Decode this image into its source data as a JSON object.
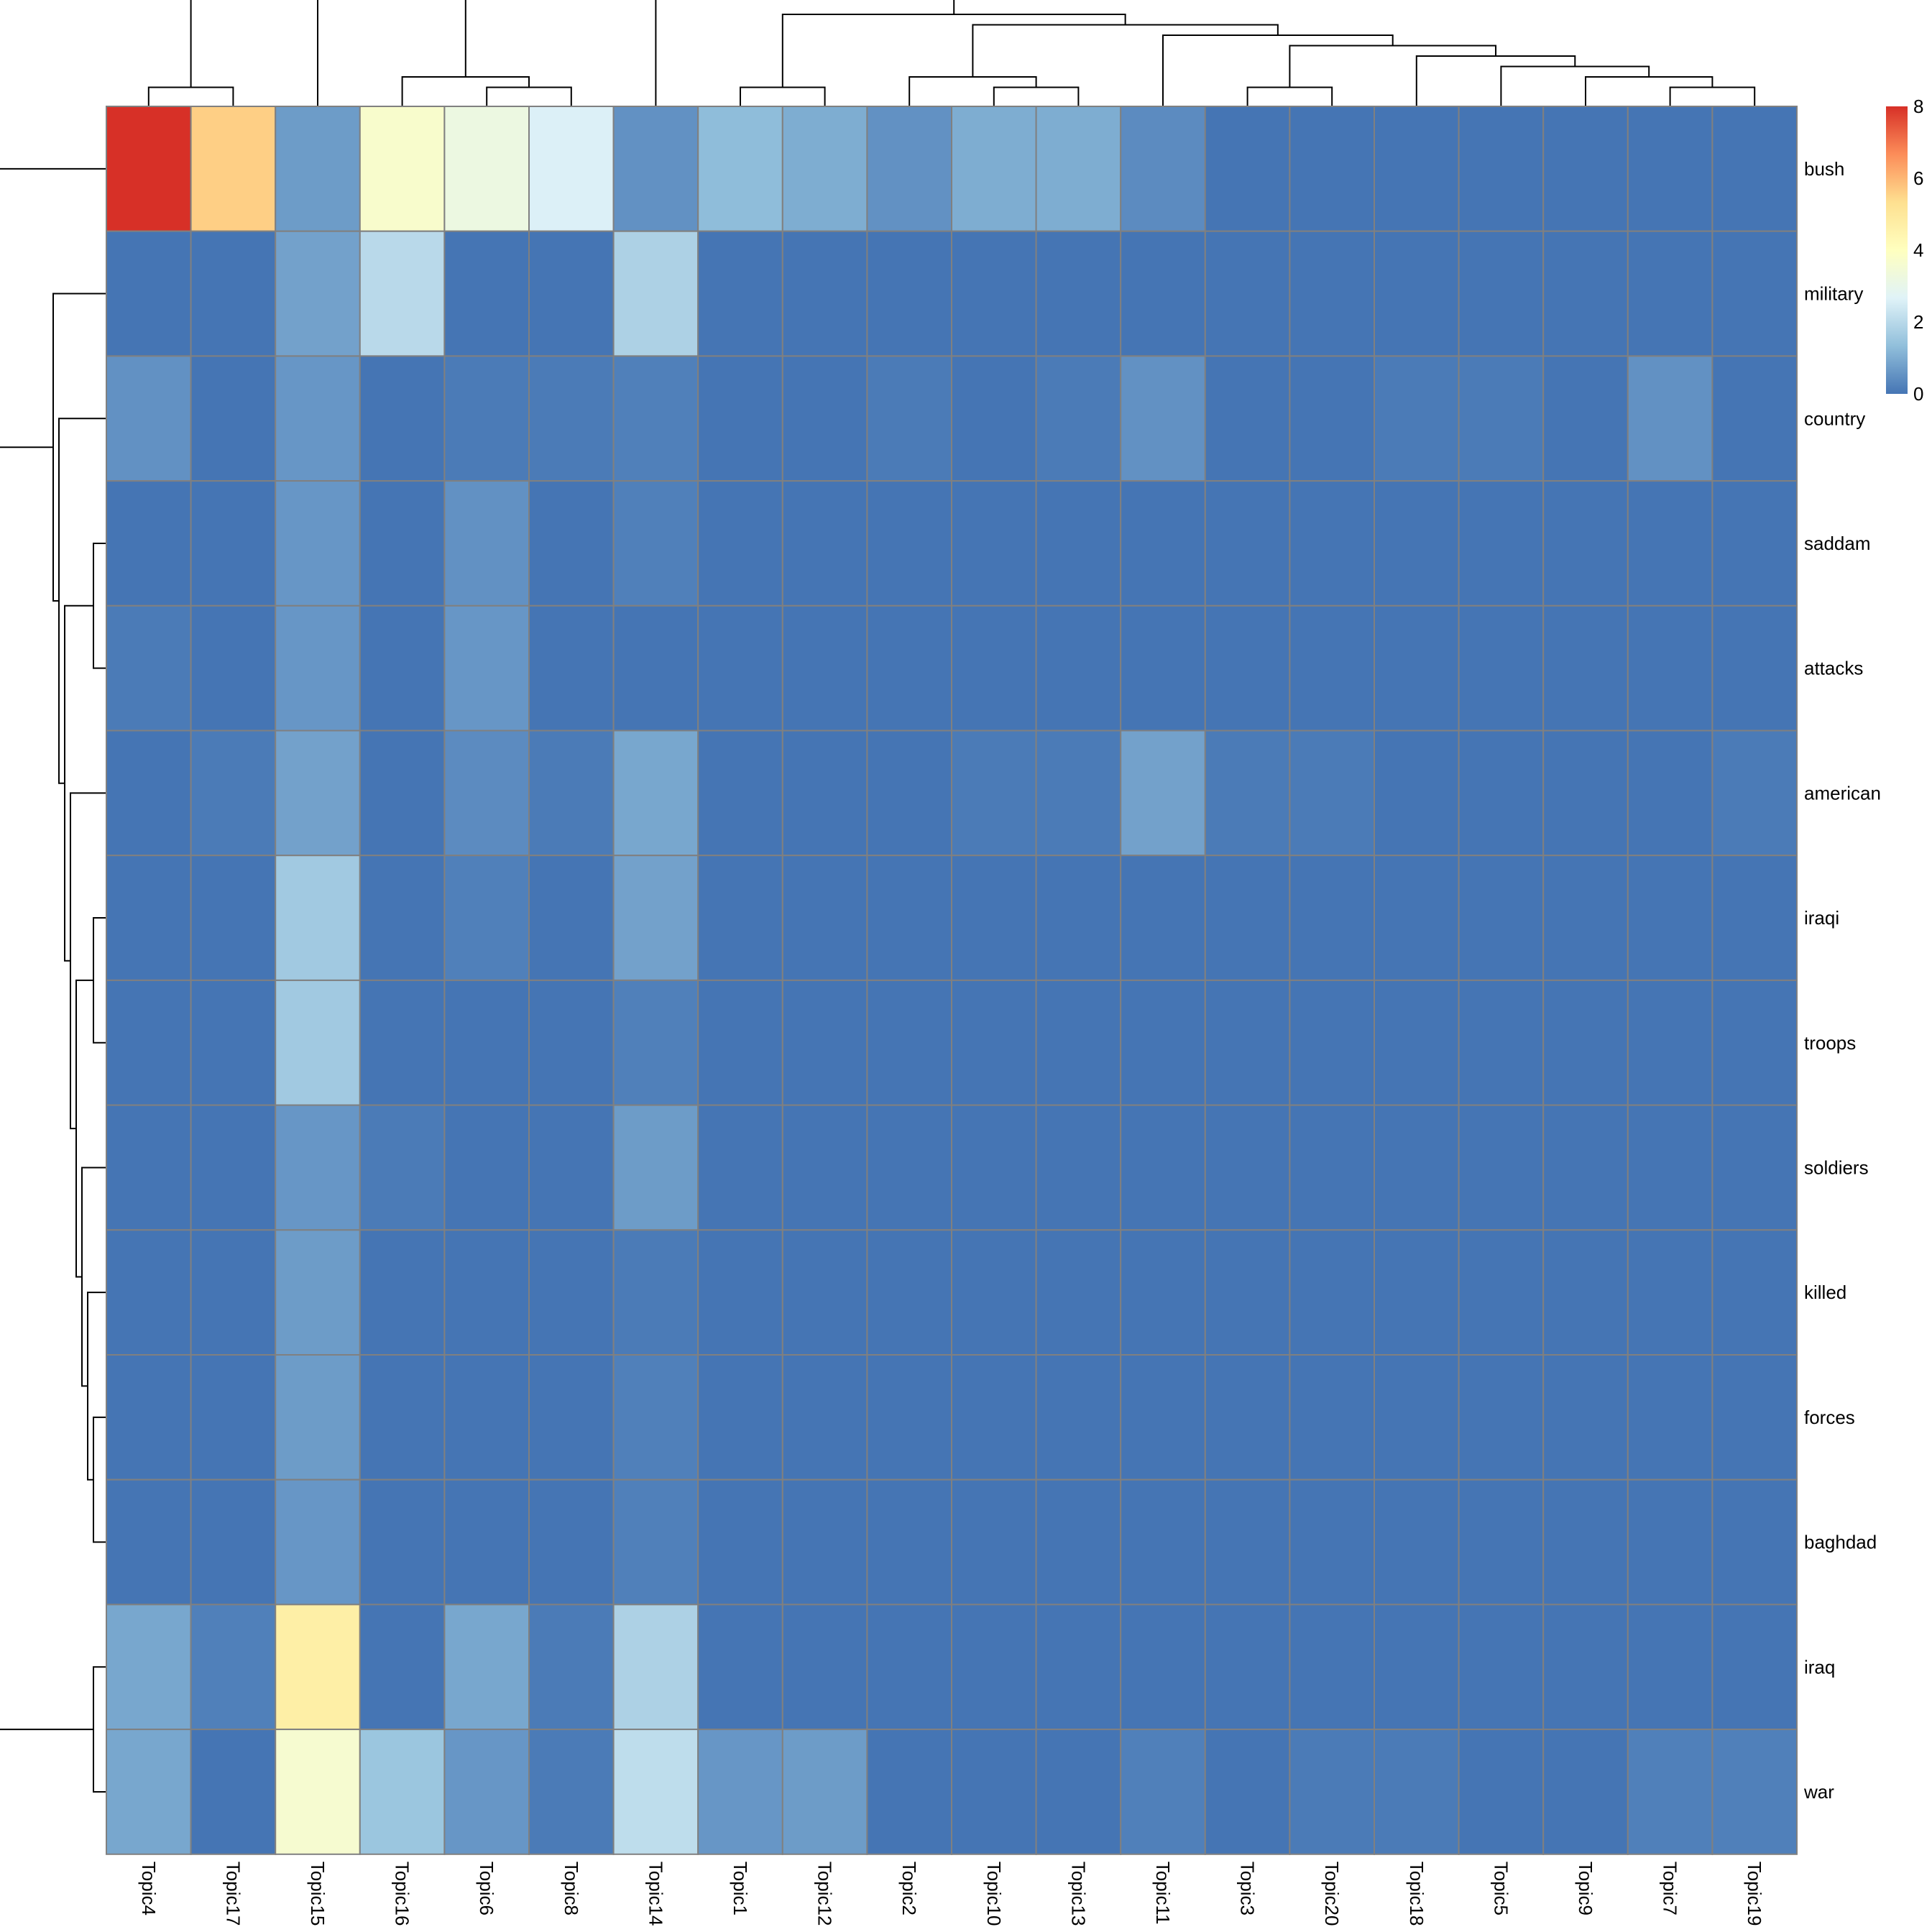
{
  "chart_data": {
    "type": "heatmap",
    "title": "",
    "xlabel": "",
    "ylabel": "",
    "rows": [
      "bush",
      "military",
      "country",
      "saddam",
      "attacks",
      "american",
      "iraqi",
      "troops",
      "soldiers",
      "killed",
      "forces",
      "baghdad",
      "iraq",
      "war"
    ],
    "columns": [
      "Topic4",
      "Topic17",
      "Topic15",
      "Topic16",
      "Topic6",
      "Topic8",
      "Topic14",
      "Topic1",
      "Topic12",
      "Topic2",
      "Topic10",
      "Topic13",
      "Topic11",
      "Topic3",
      "Topic20",
      "Topic18",
      "Topic5",
      "Topic9",
      "Topic7",
      "Topic19"
    ],
    "values": [
      [
        8.0,
        5.6,
        0.7,
        3.7,
        3.2,
        2.6,
        0.5,
        1.3,
        1.0,
        0.5,
        1.0,
        1.0,
        0.4,
        0.0,
        0.0,
        0.0,
        0.0,
        0.0,
        0.0,
        0.0
      ],
      [
        0.0,
        0.0,
        0.8,
        2.0,
        0.0,
        0.0,
        1.8,
        0.0,
        0.0,
        0.0,
        0.0,
        0.0,
        0.0,
        0.0,
        0.0,
        0.0,
        0.0,
        0.0,
        0.0,
        0.0
      ],
      [
        0.5,
        0.0,
        0.6,
        0.0,
        0.1,
        0.1,
        0.2,
        0.0,
        0.0,
        0.1,
        0.0,
        0.1,
        0.5,
        0.0,
        0.0,
        0.1,
        0.1,
        0.0,
        0.5,
        0.0
      ],
      [
        0.0,
        0.0,
        0.6,
        0.0,
        0.5,
        0.0,
        0.2,
        0.0,
        0.0,
        0.0,
        0.0,
        0.0,
        0.0,
        0.0,
        0.0,
        0.0,
        0.0,
        0.0,
        0.0,
        0.0
      ],
      [
        0.1,
        0.0,
        0.6,
        0.0,
        0.6,
        0.0,
        0.0,
        0.0,
        0.0,
        0.0,
        0.0,
        0.0,
        0.0,
        0.0,
        0.0,
        0.0,
        0.0,
        0.0,
        0.0,
        0.0
      ],
      [
        0.0,
        0.1,
        0.8,
        0.0,
        0.4,
        0.1,
        0.9,
        0.0,
        0.0,
        0.0,
        0.1,
        0.1,
        0.8,
        0.1,
        0.1,
        0.0,
        0.0,
        0.0,
        0.0,
        0.1
      ],
      [
        0.0,
        0.0,
        1.6,
        0.0,
        0.2,
        0.0,
        0.8,
        0.0,
        0.0,
        0.0,
        0.0,
        0.0,
        0.0,
        0.0,
        0.0,
        0.0,
        0.0,
        0.0,
        0.0,
        0.0
      ],
      [
        0.0,
        0.0,
        1.6,
        0.0,
        0.0,
        0.0,
        0.2,
        0.0,
        0.0,
        0.0,
        0.0,
        0.0,
        0.0,
        0.0,
        0.0,
        0.0,
        0.0,
        0.0,
        0.0,
        0.0
      ],
      [
        0.0,
        0.0,
        0.6,
        0.1,
        0.0,
        0.0,
        0.7,
        0.0,
        0.0,
        0.0,
        0.0,
        0.0,
        0.0,
        0.0,
        0.0,
        0.0,
        0.0,
        0.0,
        0.0,
        0.0
      ],
      [
        0.0,
        0.0,
        0.7,
        0.0,
        0.0,
        0.0,
        0.1,
        0.0,
        0.0,
        0.0,
        0.0,
        0.0,
        0.0,
        0.0,
        0.0,
        0.0,
        0.0,
        0.0,
        0.0,
        0.0
      ],
      [
        0.0,
        0.0,
        0.7,
        0.0,
        0.0,
        0.0,
        0.2,
        0.0,
        0.0,
        0.0,
        0.0,
        0.0,
        0.0,
        0.0,
        0.0,
        0.0,
        0.0,
        0.0,
        0.0,
        0.0
      ],
      [
        0.0,
        0.0,
        0.6,
        0.0,
        0.0,
        0.0,
        0.2,
        0.0,
        0.0,
        0.0,
        0.0,
        0.0,
        0.0,
        0.0,
        0.0,
        0.0,
        0.0,
        0.0,
        0.0,
        0.0
      ],
      [
        0.9,
        0.2,
        4.7,
        0.0,
        0.9,
        0.1,
        1.8,
        0.0,
        0.0,
        0.0,
        0.0,
        0.0,
        0.0,
        0.0,
        0.0,
        0.0,
        0.0,
        0.0,
        0.0,
        0.0
      ],
      [
        0.9,
        0.0,
        3.6,
        1.5,
        0.6,
        0.1,
        2.1,
        0.6,
        0.7,
        0.0,
        0.0,
        0.0,
        0.2,
        0.0,
        0.1,
        0.1,
        0.0,
        0.0,
        0.2,
        0.2
      ]
    ],
    "color_scale": {
      "min": 0,
      "max": 8,
      "ticks": [
        "0",
        "2",
        "4",
        "6",
        "8"
      ],
      "colors": [
        "#4575B4",
        "#91BFDB",
        "#E0F3F8",
        "#FFFFBF",
        "#FEE090",
        "#FC8D59",
        "#D73027"
      ]
    },
    "row_dendrogram": "left",
    "column_dendrogram": "top",
    "legend": "top-right",
    "grid": true,
    "grid_color": "#808080"
  }
}
